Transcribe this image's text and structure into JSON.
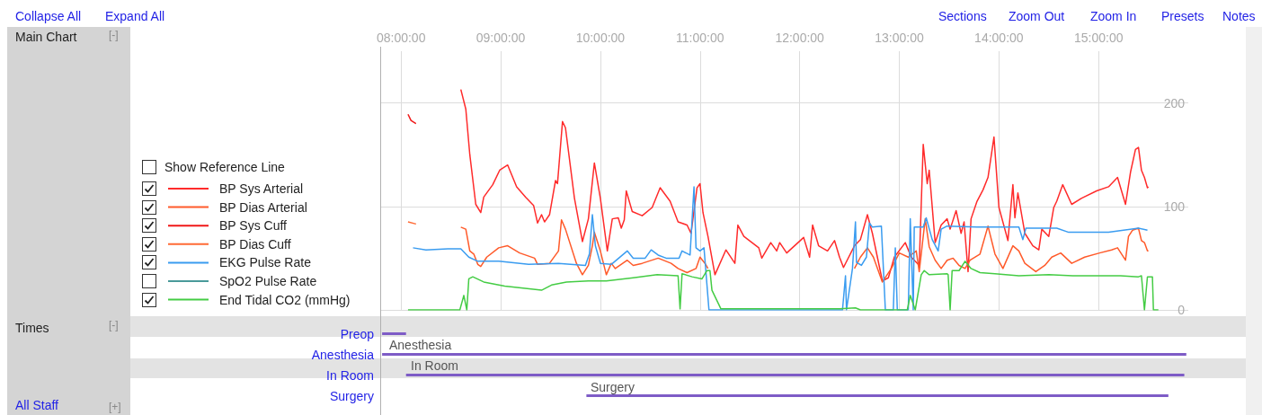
{
  "chart_data": [
    {
      "type": "line",
      "legend": "left",
      "grid": true,
      "marker": "none",
      "xlim": [
        7.8,
        15.9
      ],
      "xticks": [
        {
          "value": 8,
          "label": "08:00:00"
        },
        {
          "value": 9,
          "label": "09:00:00"
        },
        {
          "value": 10,
          "label": "10:00:00"
        },
        {
          "value": 11,
          "label": "11:00:00"
        },
        {
          "value": 12,
          "label": "12:00:00"
        },
        {
          "value": 13,
          "label": "13:00:00"
        },
        {
          "value": 14,
          "label": "14:00:00"
        },
        {
          "value": 15,
          "label": "15:00:00"
        }
      ],
      "ylim": [
        0,
        250
      ],
      "yticks": [
        0,
        100,
        200
      ],
      "annotations": [
        "Collapse All",
        "Expand All",
        "Main Chart",
        "[-]",
        "Show Reference Line",
        "Sections",
        "Zoom Out",
        "Zoom In",
        "Presets",
        "Notes"
      ],
      "series": [
        {
          "name": "BP Sys Arterial",
          "color": "#ff2b2b",
          "x": [
            8.6,
            8.65,
            8.69,
            8.75,
            8.8,
            8.83,
            8.92,
            8.99,
            9.07,
            9.16,
            9.25,
            9.33,
            9.37,
            9.41,
            9.44,
            9.49,
            9.55,
            9.57,
            9.62,
            9.65,
            9.74,
            9.82,
            9.88,
            9.94,
            10.0,
            10.07,
            10.12,
            10.18,
            10.21,
            10.24,
            10.26,
            10.32,
            10.42,
            10.52,
            10.6,
            10.7,
            10.78,
            10.87,
            10.91,
            10.94,
            10.97,
            11.0,
            11.03,
            11.08,
            11.15,
            11.26,
            11.35,
            11.38,
            11.44,
            11.59,
            11.62,
            11.71,
            11.77,
            11.8,
            11.87,
            12.04,
            12.1,
            12.13,
            12.19,
            12.28,
            12.35,
            12.4,
            12.44,
            12.55,
            12.61,
            12.68,
            12.73,
            12.83,
            12.89,
            12.95,
            13.06,
            13.12,
            13.2,
            13.24,
            13.28,
            13.3,
            13.36,
            13.42,
            13.48,
            13.51,
            13.57,
            13.62,
            13.65,
            13.69,
            13.72,
            13.78,
            13.84,
            13.89,
            13.95,
            14.0,
            14.09,
            14.14,
            14.16,
            14.19,
            14.26,
            14.34,
            14.4,
            14.43,
            14.5,
            14.55,
            14.58,
            14.64,
            14.73,
            14.83,
            14.98,
            15.1,
            15.19,
            15.27,
            15.32,
            15.37,
            15.4,
            15.43,
            15.46,
            15.49,
            15.5
          ],
          "values": [
            213,
            194,
            150,
            102,
            94,
            109,
            121,
            135,
            140,
            119,
            109,
            101,
            84,
            92,
            85,
            92,
            125,
            122,
            182,
            176,
            108,
            66,
            88,
            142,
            108,
            57,
            88,
            89,
            79,
            87,
            115,
            95,
            91,
            99,
            118,
            105,
            85,
            82,
            74,
            96,
            118,
            122,
            94,
            71,
            34,
            58,
            45,
            82,
            71,
            60,
            50,
            65,
            57,
            65,
            55,
            70,
            51,
            82,
            62,
            57,
            67,
            51,
            41,
            62,
            68,
            92,
            74,
            28,
            31,
            51,
            65,
            51,
            43,
            160,
            122,
            135,
            65,
            82,
            88,
            78,
            96,
            74,
            85,
            37,
            88,
            105,
            116,
            128,
            167,
            99,
            67,
            121,
            89,
            113,
            74,
            62,
            58,
            78,
            71,
            99,
            105,
            121,
            102,
            108,
            115,
            119,
            128,
            102,
            133,
            155,
            157,
            135,
            128,
            118,
            119
          ]
        },
        {
          "name": "BP Dias Arterial",
          "color": "#ff5a2a",
          "x": [
            8.6,
            8.65,
            8.69,
            8.73,
            8.77,
            8.8,
            8.86,
            8.98,
            9.07,
            9.19,
            9.34,
            9.37,
            9.49,
            9.58,
            9.61,
            9.65,
            9.76,
            9.82,
            9.88,
            9.92,
            9.94,
            10.0,
            10.06,
            10.11,
            10.15,
            10.27,
            10.33,
            10.42,
            10.58,
            10.71,
            10.78,
            10.87,
            10.96,
            11.0,
            11.05,
            11.08,
            11.3,
            12.55,
            12.61,
            12.68,
            12.74,
            12.83,
            12.92,
            13.0,
            13.09,
            13.17,
            13.2,
            13.26,
            13.3,
            13.36,
            13.42,
            13.48,
            13.54,
            13.6,
            13.66,
            13.71,
            13.81,
            13.89,
            13.96,
            14.04,
            14.14,
            14.2,
            14.26,
            14.37,
            14.46,
            14.53,
            14.62,
            14.73,
            14.86,
            15.01,
            15.13,
            15.19,
            15.27,
            15.3,
            15.34,
            15.4,
            15.43,
            15.46,
            15.49,
            15.5
          ],
          "values": [
            80,
            78,
            57,
            54,
            44,
            42,
            51,
            60,
            62,
            55,
            50,
            44,
            45,
            57,
            87,
            78,
            45,
            34,
            43,
            62,
            75,
            57,
            34,
            45,
            40,
            48,
            43,
            45,
            50,
            45,
            40,
            36,
            40,
            51,
            45,
            40,
            null,
            40,
            51,
            60,
            51,
            27,
            40,
            55,
            51,
            57,
            37,
            88,
            61,
            48,
            40,
            48,
            50,
            43,
            40,
            48,
            54,
            81,
            54,
            40,
            62,
            57,
            45,
            37,
            43,
            51,
            55,
            45,
            51,
            55,
            58,
            60,
            48,
            71,
            77,
            79,
            67,
            65,
            57,
            57
          ]
        },
        {
          "name": "BP Sys Cuff",
          "color": "#f01818",
          "x": [
            8.07,
            8.1,
            8.15
          ],
          "values": [
            189,
            183,
            180
          ]
        },
        {
          "name": "BP Dias Cuff",
          "color": "#ff6a35",
          "x": [
            8.07,
            8.15
          ],
          "values": [
            85,
            83
          ]
        },
        {
          "name": "EKG Pulse Rate",
          "color": "#3a9cf0",
          "x": [
            8.12,
            8.25,
            8.47,
            8.6,
            8.68,
            8.77,
            8.98,
            9.28,
            9.58,
            9.85,
            9.89,
            9.92,
            9.95,
            10.0,
            10.11,
            10.27,
            10.33,
            10.45,
            10.51,
            10.58,
            10.66,
            10.79,
            10.82,
            10.9,
            10.94,
            10.96,
            11.0,
            11.04,
            11.09,
            12.43,
            12.46,
            12.47,
            12.53,
            12.56,
            12.57,
            12.62,
            12.67,
            12.7,
            12.73,
            12.82,
            12.86,
            12.94,
            12.96,
            12.98,
            13.09,
            13.11,
            13.14,
            13.15,
            13.24,
            13.27,
            13.33,
            13.39,
            13.42,
            13.48,
            13.78,
            14.2,
            14.24,
            14.27,
            14.58,
            14.7,
            15.1,
            15.4,
            15.49
          ],
          "values": [
            60,
            58,
            59,
            59,
            51,
            47,
            47,
            44,
            45,
            43,
            54,
            92,
            62,
            45,
            44,
            57,
            50,
            50,
            58,
            53,
            50,
            50,
            57,
            53,
            119,
            60,
            57,
            60,
            0,
            0,
            33,
            0,
            40,
            85,
            46,
            43,
            51,
            84,
            80,
            81,
            0,
            0,
            60,
            0,
            0,
            88,
            0,
            80,
            80,
            89,
            68,
            57,
            78,
            81,
            80,
            80,
            68,
            79,
            79,
            75,
            75,
            79,
            77
          ]
        },
        {
          "name": "SpO2 Pulse Rate",
          "color": "#4a9a9a"
        },
        {
          "name": "End Tidal CO2 (mmHg)",
          "color": "#44cc44",
          "x": [
            8.07,
            8.59,
            8.63,
            8.66,
            8.68,
            8.72,
            8.83,
            9.04,
            9.41,
            9.51,
            9.66,
            9.88,
            10.06,
            10.33,
            10.57,
            10.78,
            10.8,
            10.82,
            10.92,
            11.02,
            11.07,
            11.1,
            11.12,
            11.21,
            11.67,
            12.4,
            12.56,
            12.61,
            13.08,
            13.11,
            13.16,
            13.22,
            13.25,
            13.3,
            13.48,
            13.49,
            13.51,
            13.53,
            13.6,
            13.66,
            13.72,
            13.81,
            13.96,
            14.2,
            14.5,
            14.74,
            15.22,
            15.4,
            15.43,
            15.46,
            15.49,
            15.54,
            15.55,
            15.6
          ],
          "values": [
            0,
            0,
            14,
            0,
            30,
            32,
            27,
            23,
            19,
            24,
            27,
            28,
            28,
            31,
            34,
            33,
            1,
            35,
            32,
            30,
            38,
            38,
            19,
            1,
            1,
            1,
            2,
            0,
            0,
            14,
            0,
            34,
            38,
            34,
            35,
            34,
            0,
            38,
            38,
            47,
            40,
            36,
            35,
            33,
            34,
            33,
            33,
            32,
            33,
            0,
            32,
            32,
            0,
            0
          ]
        }
      ]
    },
    {
      "type": "bar",
      "orientation": "horizontal",
      "tick_labels": "y",
      "color": "#7e5cc6",
      "categories": [
        "Preop",
        "Anesthesia",
        "In Room",
        "Surgery"
      ],
      "base": [
        7.81,
        7.81,
        8.05,
        9.86
      ],
      "values": [
        0.24,
        8.07,
        7.81,
        5.84
      ],
      "xlim": [
        7.8,
        15.9
      ],
      "annotations": [
        "Anesthesia",
        "In Room",
        "Surgery",
        "Times",
        "[-]",
        "All Staff",
        "[+]"
      ]
    }
  ]
}
